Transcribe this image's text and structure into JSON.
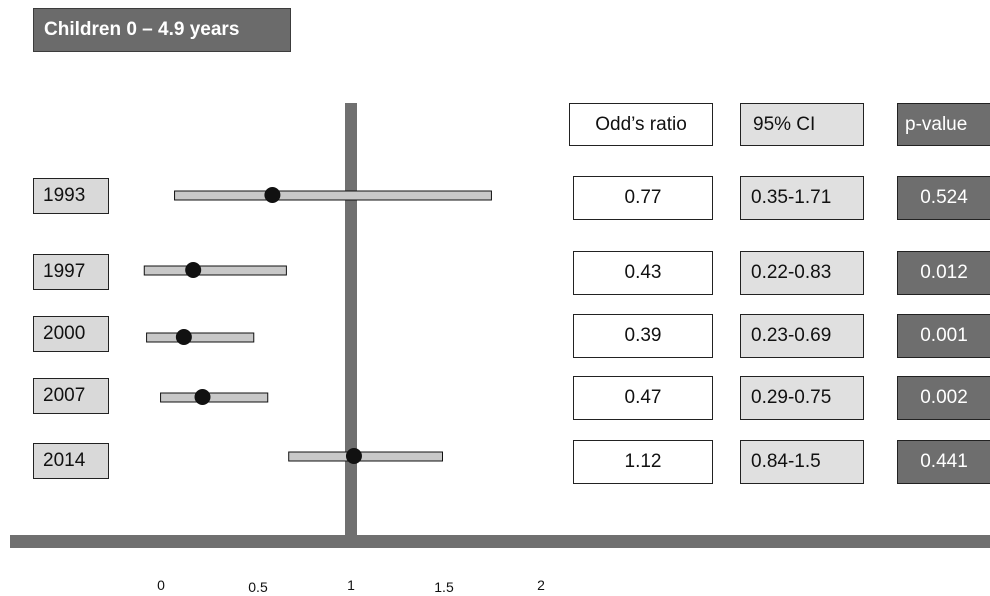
{
  "title": "Children 0 – 4.9 years",
  "headers": {
    "odds_ratio": "Odd’s ratio",
    "ci": "95% CI",
    "p_value": "p-value"
  },
  "rows": [
    {
      "year": "1993",
      "or": "0.77",
      "ci": "0.35-1.71",
      "p": "0.524"
    },
    {
      "year": "1997",
      "or": "0.43",
      "ci": "0.22-0.83",
      "p": "0.012"
    },
    {
      "year": "2000",
      "or": "0.39",
      "ci": "0.23-0.69",
      "p": "0.001"
    },
    {
      "year": "2007",
      "or": "0.47",
      "ci": "0.29-0.75",
      "p": "0.002"
    },
    {
      "year": "2014",
      "or": "1.12",
      "ci": "0.84-1.5",
      "p": "0.441"
    }
  ],
  "colors": {
    "title_bg": "#6b6b6b",
    "ci_bar": "#c8c8c8",
    "point": "#111111",
    "axis": "#707070",
    "pvalue_bg": "#6e6e6e"
  },
  "chart_data": {
    "type": "forest",
    "categories": [
      "1993",
      "1997",
      "2000",
      "2007",
      "2014"
    ],
    "estimates": [
      0.77,
      0.43,
      0.39,
      0.47,
      1.12
    ],
    "ci_lower": [
      0.35,
      0.22,
      0.23,
      0.29,
      0.84
    ],
    "ci_upper": [
      1.71,
      0.83,
      0.69,
      0.75,
      1.5
    ],
    "reference_line": 1,
    "x_ticks": [
      "0",
      "0.5",
      "1",
      "1.5",
      "2"
    ],
    "xlim": [
      0,
      2
    ]
  }
}
